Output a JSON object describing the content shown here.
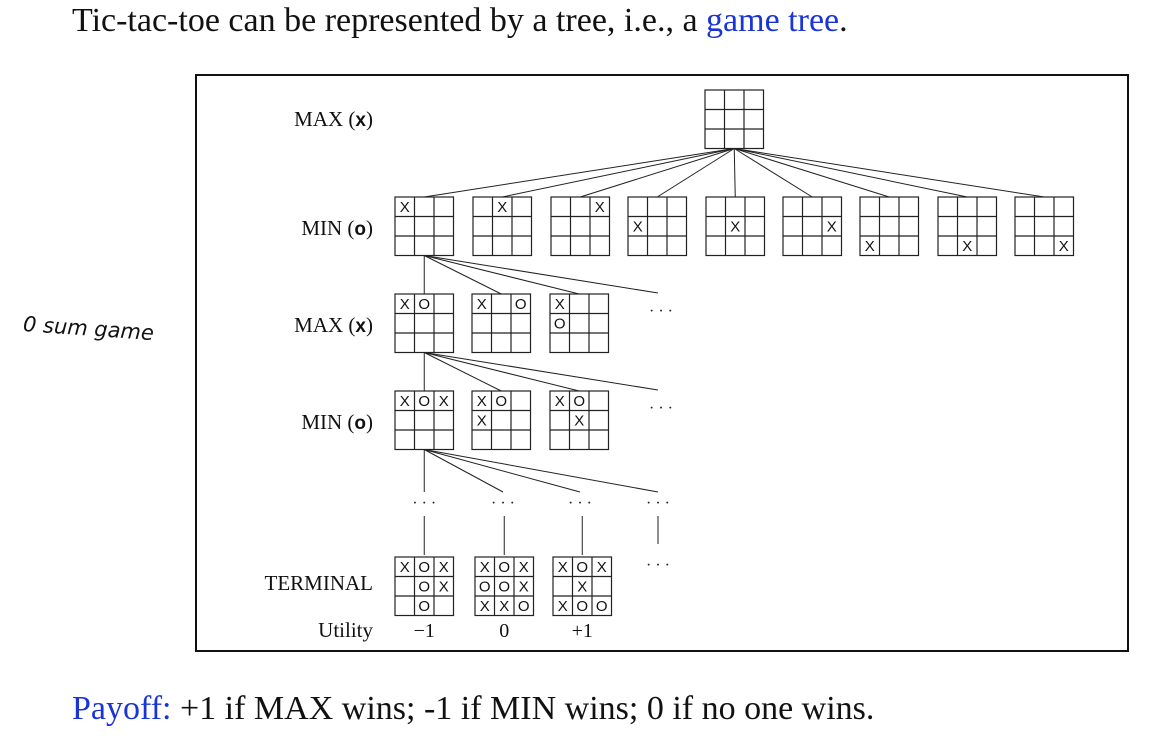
{
  "intro": {
    "prefix": "Tic-tac-toe can be represented by a tree, i.e., a ",
    "link": "game tree",
    "suffix": "."
  },
  "handwritten_note": "0 sum game",
  "figure": {
    "level_labels": [
      {
        "pre": "MAX (",
        "mark": "x",
        "post": ")"
      },
      {
        "pre": "MIN (",
        "mark": "o",
        "post": ")"
      },
      {
        "pre": "MAX (",
        "mark": "x",
        "post": ")"
      },
      {
        "pre": "MIN (",
        "mark": "o",
        "post": ")"
      },
      {
        "pre": "TERMINAL",
        "mark": "",
        "post": ""
      }
    ],
    "utility_label": "Utility",
    "ellipsis": "· · ·",
    "boards": [
      {
        "id": "root",
        "cells": [
          " ",
          " ",
          " ",
          " ",
          " ",
          " ",
          " ",
          " ",
          " "
        ]
      },
      {
        "id": "min-1",
        "cells": [
          "X",
          " ",
          " ",
          " ",
          " ",
          " ",
          " ",
          " ",
          " "
        ]
      },
      {
        "id": "min-2",
        "cells": [
          " ",
          "X",
          " ",
          " ",
          " ",
          " ",
          " ",
          " ",
          " "
        ]
      },
      {
        "id": "min-3",
        "cells": [
          " ",
          " ",
          "X",
          " ",
          " ",
          " ",
          " ",
          " ",
          " "
        ]
      },
      {
        "id": "min-4",
        "cells": [
          " ",
          " ",
          " ",
          "X",
          " ",
          " ",
          " ",
          " ",
          " "
        ]
      },
      {
        "id": "min-5",
        "cells": [
          " ",
          " ",
          " ",
          " ",
          "X",
          " ",
          " ",
          " ",
          " "
        ]
      },
      {
        "id": "min-6",
        "cells": [
          " ",
          " ",
          " ",
          " ",
          " ",
          "X",
          " ",
          " ",
          " "
        ]
      },
      {
        "id": "min-7",
        "cells": [
          " ",
          " ",
          " ",
          " ",
          " ",
          " ",
          "X",
          " ",
          " "
        ]
      },
      {
        "id": "min-8",
        "cells": [
          " ",
          " ",
          " ",
          " ",
          " ",
          " ",
          " ",
          "X",
          " "
        ]
      },
      {
        "id": "min-9",
        "cells": [
          " ",
          " ",
          " ",
          " ",
          " ",
          " ",
          " ",
          " ",
          "X"
        ]
      },
      {
        "id": "max2-1",
        "cells": [
          "X",
          "O",
          " ",
          " ",
          " ",
          " ",
          " ",
          " ",
          " "
        ]
      },
      {
        "id": "max2-2",
        "cells": [
          "X",
          " ",
          "O",
          " ",
          " ",
          " ",
          " ",
          " ",
          " "
        ]
      },
      {
        "id": "max2-3",
        "cells": [
          "X",
          " ",
          " ",
          "O",
          " ",
          " ",
          " ",
          " ",
          " "
        ]
      },
      {
        "id": "min2-1",
        "cells": [
          "X",
          "O",
          "X",
          " ",
          " ",
          " ",
          " ",
          " ",
          " "
        ]
      },
      {
        "id": "min2-2",
        "cells": [
          "X",
          "O",
          " ",
          "X",
          " ",
          " ",
          " ",
          " ",
          " "
        ]
      },
      {
        "id": "min2-3",
        "cells": [
          "X",
          "O",
          " ",
          " ",
          "X",
          " ",
          " ",
          " ",
          " "
        ]
      },
      {
        "id": "term-1",
        "cells": [
          "X",
          "O",
          "X",
          " ",
          "O",
          "X",
          " ",
          "O",
          " "
        ]
      },
      {
        "id": "term-2",
        "cells": [
          "X",
          "O",
          "X",
          "O",
          "O",
          "X",
          "X",
          "X",
          "O"
        ]
      },
      {
        "id": "term-3",
        "cells": [
          "X",
          "O",
          "X",
          " ",
          "X",
          " ",
          "X",
          "O",
          "O"
        ]
      }
    ],
    "utilities": [
      "−1",
      "0",
      "+1"
    ]
  },
  "payoff": {
    "label": "Payoff:",
    "text": " +1 if MAX wins; -1 if MIN wins; 0 if no one wins."
  }
}
